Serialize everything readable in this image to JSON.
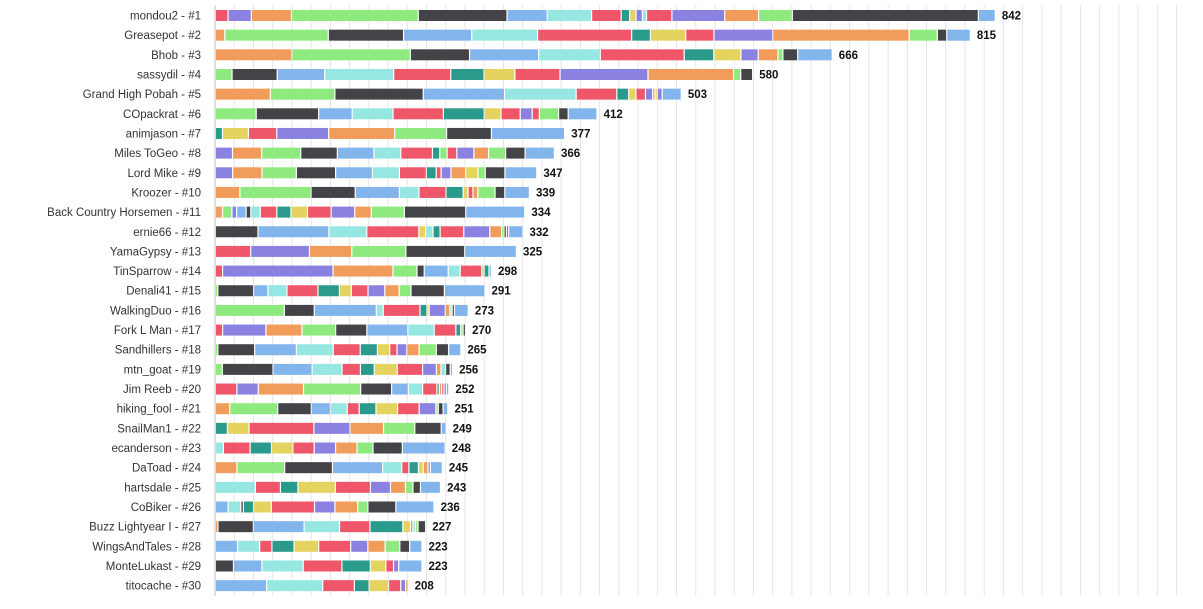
{
  "chart_data": {
    "type": "bar",
    "orientation": "horizontal",
    "stacked": true,
    "grid": true,
    "xlim": [
      0,
      1000
    ],
    "categories": [
      "mondou2 - #1",
      "Greasepot - #2",
      "Bhob - #3",
      "sassydil - #4",
      "Grand High Pobah - #5",
      "COpackrat - #6",
      "animjason - #7",
      "Miles ToGeo - #8",
      "Lord Mike - #9",
      "Kroozer - #10",
      "Back Country Horsemen - #11",
      "ernie66 - #12",
      "YamaGypsy - #13",
      "TinSparrow - #14",
      "Denali41 - #15",
      "WalkingDuo - #16",
      "Fork L Man - #17",
      "Sandhillers - #18",
      "mtn_goat - #19",
      "Jim Reeb - #20",
      "hiking_fool - #21",
      "SnailMan1 - #22",
      "ecanderson - #23",
      "DaToad - #24",
      "hartsdale - #25",
      "CoBiker - #26",
      "Buzz Lightyear I - #27",
      "WingsAndTales - #28",
      "MonteLukast - #29",
      "titocache - #30"
    ],
    "totals": [
      842,
      815,
      666,
      580,
      503,
      412,
      377,
      366,
      347,
      339,
      334,
      332,
      325,
      298,
      291,
      273,
      270,
      265,
      256,
      252,
      251,
      249,
      248,
      245,
      243,
      236,
      227,
      223,
      223,
      208
    ],
    "palette": [
      "#f0566a",
      "#8a81e0",
      "#f29c5c",
      "#8eea7e",
      "#434348",
      "#82b5eb",
      "#96e6e1",
      "#2a9a8c",
      "#e4d35e"
    ],
    "segments": [
      [
        [
          0,
          6
        ],
        [
          1,
          11
        ],
        [
          2,
          19
        ],
        [
          3,
          60
        ],
        [
          4,
          42
        ],
        [
          5,
          19
        ],
        [
          6,
          21
        ],
        [
          0,
          14
        ],
        [
          7,
          4
        ],
        [
          8,
          3
        ],
        [
          1,
          3
        ],
        [
          6,
          2
        ],
        [
          0,
          12
        ],
        [
          1,
          25
        ],
        [
          2,
          16
        ],
        [
          3,
          16
        ],
        [
          4,
          88
        ],
        [
          5,
          8
        ]
      ],
      [
        [
          2,
          4
        ],
        [
          3,
          44
        ],
        [
          4,
          32
        ],
        [
          5,
          29
        ],
        [
          6,
          28
        ],
        [
          0,
          40
        ],
        [
          7,
          8
        ],
        [
          8,
          15
        ],
        [
          0,
          12
        ],
        [
          1,
          25
        ],
        [
          2,
          58
        ],
        [
          3,
          12
        ],
        [
          4,
          4
        ],
        [
          5,
          10
        ]
      ],
      [
        [
          2,
          31
        ],
        [
          3,
          48
        ],
        [
          4,
          24
        ],
        [
          5,
          28
        ],
        [
          6,
          25
        ],
        [
          0,
          34
        ],
        [
          7,
          12
        ],
        [
          8,
          11
        ],
        [
          1,
          7
        ],
        [
          2,
          8
        ],
        [
          3,
          2
        ],
        [
          4,
          6
        ],
        [
          5,
          14
        ]
      ],
      [
        [
          3,
          7
        ],
        [
          4,
          19
        ],
        [
          5,
          20
        ],
        [
          6,
          29
        ],
        [
          0,
          24
        ],
        [
          7,
          14
        ],
        [
          8,
          13
        ],
        [
          0,
          19
        ],
        [
          1,
          37
        ],
        [
          2,
          36
        ],
        [
          3,
          3
        ],
        [
          4,
          5
        ]
      ],
      [
        [
          2,
          23
        ],
        [
          3,
          27
        ],
        [
          4,
          37
        ],
        [
          5,
          34
        ],
        [
          6,
          30
        ],
        [
          0,
          17
        ],
        [
          7,
          5
        ],
        [
          8,
          3
        ],
        [
          0,
          4
        ],
        [
          1,
          3
        ],
        [
          2,
          1
        ],
        [
          8,
          1
        ],
        [
          1,
          2
        ],
        [
          5,
          8
        ]
      ],
      [
        [
          3,
          17
        ],
        [
          4,
          26
        ],
        [
          5,
          14
        ],
        [
          6,
          17
        ],
        [
          0,
          21
        ],
        [
          7,
          17
        ],
        [
          8,
          7
        ],
        [
          0,
          8
        ],
        [
          1,
          5
        ],
        [
          0,
          3
        ],
        [
          3,
          8
        ],
        [
          4,
          4
        ],
        [
          5,
          12
        ]
      ],
      [
        [
          7,
          3
        ],
        [
          8,
          11
        ],
        [
          0,
          12
        ],
        [
          1,
          22
        ],
        [
          2,
          28
        ],
        [
          3,
          22
        ],
        [
          4,
          19
        ],
        [
          5,
          31
        ]
      ],
      [
        [
          1,
          7
        ],
        [
          2,
          12
        ],
        [
          3,
          16
        ],
        [
          4,
          15
        ],
        [
          5,
          15
        ],
        [
          6,
          11
        ],
        [
          0,
          13
        ],
        [
          7,
          3
        ],
        [
          3,
          3
        ],
        [
          0,
          4
        ],
        [
          1,
          7
        ],
        [
          2,
          6
        ],
        [
          3,
          7
        ],
        [
          4,
          8
        ],
        [
          5,
          12
        ]
      ],
      [
        [
          1,
          7
        ],
        [
          2,
          12
        ],
        [
          3,
          14
        ],
        [
          4,
          16
        ],
        [
          5,
          15
        ],
        [
          6,
          11
        ],
        [
          0,
          11
        ],
        [
          7,
          4
        ],
        [
          0,
          2
        ],
        [
          1,
          4
        ],
        [
          2,
          6
        ],
        [
          8,
          5
        ],
        [
          3,
          3
        ],
        [
          4,
          8
        ],
        [
          5,
          13
        ]
      ],
      [
        [
          2,
          10
        ],
        [
          3,
          29
        ],
        [
          4,
          18
        ],
        [
          5,
          18
        ],
        [
          6,
          8
        ],
        [
          0,
          11
        ],
        [
          7,
          7
        ],
        [
          8,
          2
        ],
        [
          0,
          2
        ],
        [
          2,
          2
        ],
        [
          3,
          7
        ],
        [
          4,
          4
        ],
        [
          5,
          10
        ]
      ],
      [
        [
          2,
          3
        ],
        [
          3,
          4
        ],
        [
          1,
          2
        ],
        [
          5,
          4
        ],
        [
          4,
          2
        ],
        [
          6,
          4
        ],
        [
          0,
          7
        ],
        [
          7,
          6
        ],
        [
          8,
          7
        ],
        [
          0,
          10
        ],
        [
          1,
          10
        ],
        [
          2,
          7
        ],
        [
          3,
          14
        ],
        [
          4,
          26
        ],
        [
          5,
          25
        ]
      ],
      [
        [
          4,
          18
        ],
        [
          5,
          30
        ],
        [
          6,
          16
        ],
        [
          0,
          22
        ],
        [
          8,
          3
        ],
        [
          6,
          3
        ],
        [
          7,
          3
        ],
        [
          0,
          10
        ],
        [
          1,
          11
        ],
        [
          2,
          5
        ],
        [
          3,
          1
        ],
        [
          4,
          1
        ],
        [
          0,
          1
        ],
        [
          5,
          6
        ]
      ],
      [
        [
          0,
          15
        ],
        [
          1,
          25
        ],
        [
          2,
          18
        ],
        [
          3,
          23
        ],
        [
          4,
          25
        ],
        [
          5,
          22
        ]
      ],
      [
        [
          0,
          3
        ],
        [
          1,
          46
        ],
        [
          2,
          25
        ],
        [
          3,
          10
        ],
        [
          4,
          3
        ],
        [
          5,
          10
        ],
        [
          6,
          5
        ],
        [
          0,
          9
        ],
        [
          3,
          1
        ],
        [
          7,
          2
        ],
        [
          5,
          1
        ]
      ],
      [
        [
          3,
          1
        ],
        [
          4,
          15
        ],
        [
          5,
          6
        ],
        [
          6,
          8
        ],
        [
          0,
          13
        ],
        [
          7,
          9
        ],
        [
          8,
          5
        ],
        [
          0,
          7
        ],
        [
          1,
          7
        ],
        [
          2,
          6
        ],
        [
          3,
          5
        ],
        [
          4,
          14
        ],
        [
          5,
          17
        ]
      ],
      [
        [
          3,
          30
        ],
        [
          4,
          13
        ],
        [
          5,
          27
        ],
        [
          6,
          3
        ],
        [
          0,
          16
        ],
        [
          7,
          3
        ],
        [
          8,
          1
        ],
        [
          1,
          7
        ],
        [
          2,
          2
        ],
        [
          6,
          1
        ],
        [
          4,
          1
        ],
        [
          5,
          6
        ]
      ],
      [
        [
          0,
          3
        ],
        [
          1,
          18
        ],
        [
          2,
          15
        ],
        [
          3,
          14
        ],
        [
          4,
          13
        ],
        [
          5,
          17
        ],
        [
          6,
          11
        ],
        [
          0,
          9
        ],
        [
          7,
          2
        ],
        [
          3,
          1
        ],
        [
          4,
          1
        ]
      ],
      [
        [
          3,
          1
        ],
        [
          4,
          15
        ],
        [
          5,
          17
        ],
        [
          6,
          15
        ],
        [
          0,
          11
        ],
        [
          7,
          7
        ],
        [
          8,
          5
        ],
        [
          0,
          3
        ],
        [
          1,
          4
        ],
        [
          2,
          5
        ],
        [
          3,
          7
        ],
        [
          4,
          5
        ],
        [
          5,
          5
        ]
      ],
      [
        [
          3,
          3
        ],
        [
          4,
          22
        ],
        [
          5,
          17
        ],
        [
          6,
          13
        ],
        [
          0,
          8
        ],
        [
          7,
          6
        ],
        [
          8,
          10
        ],
        [
          0,
          11
        ],
        [
          1,
          6
        ],
        [
          2,
          2
        ],
        [
          6,
          2
        ],
        [
          4,
          2
        ],
        [
          5,
          1
        ]
      ],
      [
        [
          0,
          9
        ],
        [
          1,
          9
        ],
        [
          2,
          19
        ],
        [
          3,
          24
        ],
        [
          4,
          13
        ],
        [
          5,
          7
        ],
        [
          6,
          6
        ],
        [
          0,
          6
        ],
        [
          7,
          1
        ],
        [
          2,
          1
        ],
        [
          0,
          1
        ],
        [
          1,
          1
        ],
        [
          5,
          1
        ]
      ],
      [
        [
          2,
          6
        ],
        [
          3,
          20
        ],
        [
          4,
          14
        ],
        [
          5,
          8
        ],
        [
          6,
          7
        ],
        [
          0,
          5
        ],
        [
          7,
          7
        ],
        [
          8,
          9
        ],
        [
          0,
          9
        ],
        [
          1,
          7
        ],
        [
          3,
          1
        ],
        [
          4,
          2
        ],
        [
          5,
          2
        ]
      ],
      [
        [
          7,
          5
        ],
        [
          8,
          9
        ],
        [
          0,
          27
        ],
        [
          1,
          15
        ],
        [
          2,
          14
        ],
        [
          3,
          13
        ],
        [
          4,
          11
        ],
        [
          5,
          2
        ]
      ],
      [
        [
          6,
          3
        ],
        [
          0,
          10
        ],
        [
          7,
          8
        ],
        [
          8,
          8
        ],
        [
          0,
          8
        ],
        [
          1,
          8
        ],
        [
          2,
          8
        ],
        [
          3,
          6
        ],
        [
          4,
          11
        ],
        [
          5,
          16
        ]
      ],
      [
        [
          2,
          9
        ],
        [
          3,
          20
        ],
        [
          4,
          20
        ],
        [
          5,
          21
        ],
        [
          6,
          8
        ],
        [
          0,
          3
        ],
        [
          7,
          4
        ],
        [
          8,
          2
        ],
        [
          2,
          2
        ],
        [
          1,
          1
        ],
        [
          5,
          5
        ]
      ],
      [
        [
          6,
          16
        ],
        [
          0,
          10
        ],
        [
          7,
          7
        ],
        [
          8,
          15
        ],
        [
          0,
          14
        ],
        [
          1,
          8
        ],
        [
          2,
          6
        ],
        [
          3,
          3
        ],
        [
          4,
          3
        ],
        [
          5,
          8
        ]
      ],
      [
        [
          5,
          5
        ],
        [
          6,
          5
        ],
        [
          4,
          1
        ],
        [
          7,
          4
        ],
        [
          8,
          7
        ],
        [
          0,
          17
        ],
        [
          1,
          8
        ],
        [
          2,
          9
        ],
        [
          3,
          4
        ],
        [
          4,
          11
        ],
        [
          5,
          15
        ]
      ],
      [
        [
          2,
          1
        ],
        [
          4,
          14
        ],
        [
          5,
          20
        ],
        [
          6,
          14
        ],
        [
          0,
          12
        ],
        [
          7,
          13
        ],
        [
          8,
          3
        ],
        [
          2,
          1
        ],
        [
          6,
          1
        ],
        [
          3,
          1
        ],
        [
          4,
          3
        ]
      ],
      [
        [
          5,
          9
        ],
        [
          6,
          9
        ],
        [
          0,
          5
        ],
        [
          7,
          9
        ],
        [
          8,
          10
        ],
        [
          0,
          13
        ],
        [
          1,
          7
        ],
        [
          2,
          7
        ],
        [
          3,
          6
        ],
        [
          4,
          4
        ],
        [
          5,
          5
        ]
      ],
      [
        [
          4,
          7
        ],
        [
          5,
          11
        ],
        [
          6,
          16
        ],
        [
          0,
          15
        ],
        [
          7,
          11
        ],
        [
          8,
          6
        ],
        [
          0,
          3
        ],
        [
          1,
          2
        ],
        [
          5,
          9
        ]
      ],
      [
        [
          5,
          21
        ],
        [
          6,
          23
        ],
        [
          0,
          13
        ],
        [
          7,
          6
        ],
        [
          8,
          8
        ],
        [
          0,
          5
        ],
        [
          1,
          2
        ],
        [
          2,
          1
        ]
      ]
    ]
  }
}
